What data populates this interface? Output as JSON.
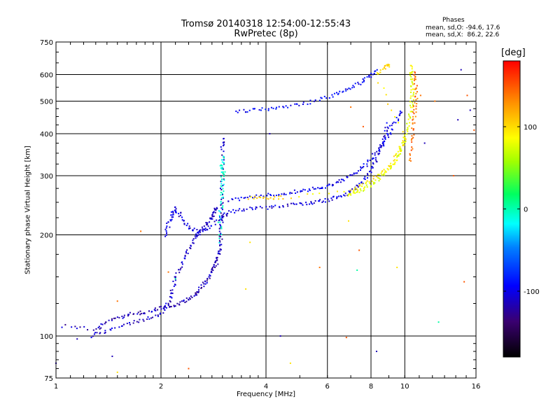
{
  "header": {
    "title_line1": "Tromsø 20140318 12:54:00-12:55:43",
    "title_line2": "RwPretec (8p)"
  },
  "stats": {
    "label": "Phases",
    "o_line": "mean, sd,O: -94.6, 17.6",
    "x_line": "mean, sd,X:  86.2, 22.6"
  },
  "colorbar": {
    "unit": "[deg]",
    "range": [
      -180,
      180
    ],
    "ticks": [
      100,
      0,
      -100
    ],
    "tick_labels": [
      "100",
      "0",
      "-100"
    ]
  },
  "chart_data": {
    "type": "scatter",
    "title": "Tromsø 20140318 12:54:00-12:55:43",
    "subtitle": "RwPretec (8p)",
    "xlabel": "Frequency [MHz]",
    "ylabel": "Stationary phase Virtual Height [km]",
    "x_scale": "log",
    "y_scale": "log",
    "xlim": [
      1,
      16
    ],
    "ylim": [
      75,
      750
    ],
    "x_ticks": [
      1,
      2,
      4,
      6,
      8,
      10,
      16
    ],
    "x_tick_labels": [
      "1",
      "2",
      "4",
      "6",
      "8",
      "10",
      "16"
    ],
    "y_ticks": [
      75,
      100,
      200,
      300,
      400,
      500,
      600,
      750
    ],
    "y_tick_labels": [
      "75",
      "100",
      "200",
      "300",
      "400",
      "500",
      "600",
      "750"
    ],
    "grid": true,
    "color_encoding": "phase [deg]",
    "traces": [
      {
        "phase": -120,
        "points": [
          [
            1.05,
            107
          ],
          [
            1.3,
            105
          ],
          [
            1.4,
            110
          ],
          [
            1.55,
            114
          ],
          [
            1.7,
            117
          ],
          [
            1.85,
            118
          ],
          [
            2.0,
            121
          ],
          [
            2.15,
            123
          ],
          [
            2.3,
            126
          ],
          [
            2.45,
            130
          ],
          [
            2.55,
            135
          ],
          [
            2.65,
            142
          ],
          [
            2.75,
            150
          ],
          [
            2.8,
            158
          ],
          [
            2.88,
            165
          ],
          [
            2.92,
            172
          ],
          [
            2.95,
            185
          ],
          [
            2.97,
            200
          ],
          [
            2.98,
            220
          ],
          [
            2.99,
            250
          ],
          [
            3.0,
            300
          ],
          [
            3.0,
            360
          ],
          [
            3.0,
            390
          ]
        ]
      },
      {
        "phase": -115,
        "points": [
          [
            1.25,
            100
          ],
          [
            1.4,
            104
          ],
          [
            1.6,
            108
          ],
          [
            1.8,
            112
          ],
          [
            2.0,
            116
          ],
          [
            2.1,
            125
          ],
          [
            2.15,
            135
          ],
          [
            2.2,
            150
          ],
          [
            2.3,
            165
          ],
          [
            2.4,
            180
          ],
          [
            2.5,
            195
          ],
          [
            2.6,
            205
          ],
          [
            2.7,
            215
          ],
          [
            2.8,
            225
          ],
          [
            2.85,
            235
          ],
          [
            2.9,
            240
          ]
        ]
      },
      {
        "phase": -110,
        "points": [
          [
            2.05,
            200
          ],
          [
            2.1,
            215
          ],
          [
            2.15,
            230
          ],
          [
            2.2,
            240
          ],
          [
            2.3,
            225
          ],
          [
            2.4,
            210
          ],
          [
            2.55,
            205
          ],
          [
            2.75,
            210
          ],
          [
            2.95,
            225
          ],
          [
            3.1,
            232
          ],
          [
            3.4,
            238
          ],
          [
            3.8,
            240
          ],
          [
            4.3,
            242
          ],
          [
            4.8,
            246
          ],
          [
            5.3,
            248
          ],
          [
            5.8,
            252
          ],
          [
            6.3,
            258
          ],
          [
            6.8,
            265
          ],
          [
            7.2,
            275
          ],
          [
            7.6,
            290
          ],
          [
            8.0,
            310
          ],
          [
            8.3,
            340
          ],
          [
            8.6,
            370
          ],
          [
            8.8,
            400
          ],
          [
            9.0,
            430
          ]
        ]
      },
      {
        "phase": -105,
        "points": [
          [
            3.1,
            252
          ],
          [
            3.5,
            258
          ],
          [
            4.0,
            262
          ],
          [
            4.5,
            266
          ],
          [
            5.0,
            270
          ],
          [
            5.5,
            275
          ],
          [
            6.0,
            280
          ],
          [
            6.5,
            288
          ],
          [
            7.0,
            300
          ],
          [
            7.5,
            315
          ],
          [
            8.0,
            335
          ],
          [
            8.5,
            365
          ],
          [
            9.0,
            395
          ],
          [
            9.5,
            440
          ],
          [
            9.8,
            470
          ]
        ]
      },
      {
        "phase": -100,
        "points": [
          [
            3.3,
            465
          ],
          [
            3.7,
            470
          ],
          [
            4.2,
            475
          ],
          [
            4.8,
            485
          ],
          [
            5.5,
            500
          ],
          [
            6.2,
            520
          ],
          [
            6.8,
            540
          ],
          [
            7.4,
            565
          ],
          [
            7.9,
            590
          ],
          [
            8.3,
            620
          ]
        ]
      },
      {
        "phase": -10,
        "points": [
          [
            2.95,
            190
          ],
          [
            2.95,
            230
          ],
          [
            3.0,
            260
          ],
          [
            3.0,
            285
          ],
          [
            3.02,
            310
          ],
          [
            3.0,
            340
          ],
          [
            2.97,
            300
          ]
        ]
      },
      {
        "phase": 80,
        "points": [
          [
            6.8,
            262
          ],
          [
            7.3,
            268
          ],
          [
            7.8,
            278
          ],
          [
            8.3,
            290
          ],
          [
            8.8,
            305
          ],
          [
            9.3,
            325
          ],
          [
            9.6,
            345
          ],
          [
            9.9,
            370
          ],
          [
            10.1,
            400
          ],
          [
            10.3,
            440
          ],
          [
            10.45,
            480
          ],
          [
            10.5,
            520
          ],
          [
            10.5,
            560
          ],
          [
            10.45,
            600
          ],
          [
            10.4,
            640
          ]
        ]
      },
      {
        "phase": 100,
        "points": [
          [
            3.6,
            258
          ],
          [
            4.0,
            258
          ],
          [
            4.5,
            258
          ],
          [
            7.0,
            270
          ],
          [
            7.6,
            282
          ],
          [
            8.4,
            300
          ],
          [
            9.0,
            320
          ],
          [
            9.6,
            355
          ],
          [
            10.0,
            390
          ],
          [
            8.3,
            600
          ],
          [
            8.8,
            635
          ],
          [
            9.1,
            645
          ]
        ]
      },
      {
        "phase": 140,
        "points": [
          [
            10.3,
            330
          ],
          [
            10.5,
            380
          ],
          [
            10.6,
            430
          ],
          [
            10.7,
            470
          ],
          [
            10.8,
            520
          ],
          [
            10.7,
            570
          ],
          [
            10.6,
            620
          ]
        ]
      }
    ],
    "scatter_points": [
      {
        "x": 1.0,
        "y": 83,
        "phase": -120
      },
      {
        "x": 1.15,
        "y": 98,
        "phase": -120
      },
      {
        "x": 1.45,
        "y": 87,
        "phase": -120
      },
      {
        "x": 1.5,
        "y": 78,
        "phase": 100
      },
      {
        "x": 1.5,
        "y": 127,
        "phase": 140
      },
      {
        "x": 1.75,
        "y": 205,
        "phase": 140
      },
      {
        "x": 2.1,
        "y": 155,
        "phase": 140
      },
      {
        "x": 2.2,
        "y": 148,
        "phase": 0
      },
      {
        "x": 2.4,
        "y": 80,
        "phase": 150
      },
      {
        "x": 3.6,
        "y": 190,
        "phase": 100
      },
      {
        "x": 3.5,
        "y": 138,
        "phase": 100
      },
      {
        "x": 4.1,
        "y": 400,
        "phase": -120
      },
      {
        "x": 4.4,
        "y": 100,
        "phase": -120
      },
      {
        "x": 4.7,
        "y": 83,
        "phase": 100
      },
      {
        "x": 5.7,
        "y": 160,
        "phase": 140
      },
      {
        "x": 6.8,
        "y": 99,
        "phase": 150
      },
      {
        "x": 6.9,
        "y": 220,
        "phase": 100
      },
      {
        "x": 7.0,
        "y": 480,
        "phase": 140
      },
      {
        "x": 7.4,
        "y": 180,
        "phase": 150
      },
      {
        "x": 7.3,
        "y": 157,
        "phase": 0
      },
      {
        "x": 7.6,
        "y": 420,
        "phase": 150
      },
      {
        "x": 8.3,
        "y": 90,
        "phase": -120
      },
      {
        "x": 9.5,
        "y": 160,
        "phase": 100
      },
      {
        "x": 11.1,
        "y": 520,
        "phase": 140
      },
      {
        "x": 11.4,
        "y": 375,
        "phase": -120
      },
      {
        "x": 12.2,
        "y": 500,
        "phase": 140
      },
      {
        "x": 12.5,
        "y": 110,
        "phase": 0
      },
      {
        "x": 13.8,
        "y": 300,
        "phase": 150
      },
      {
        "x": 14.2,
        "y": 440,
        "phase": -120
      },
      {
        "x": 14.5,
        "y": 620,
        "phase": -120
      },
      {
        "x": 14.8,
        "y": 145,
        "phase": 150
      },
      {
        "x": 15.1,
        "y": 520,
        "phase": 150
      },
      {
        "x": 15.4,
        "y": 470,
        "phase": -120
      },
      {
        "x": 15.8,
        "y": 410,
        "phase": 150
      }
    ]
  }
}
